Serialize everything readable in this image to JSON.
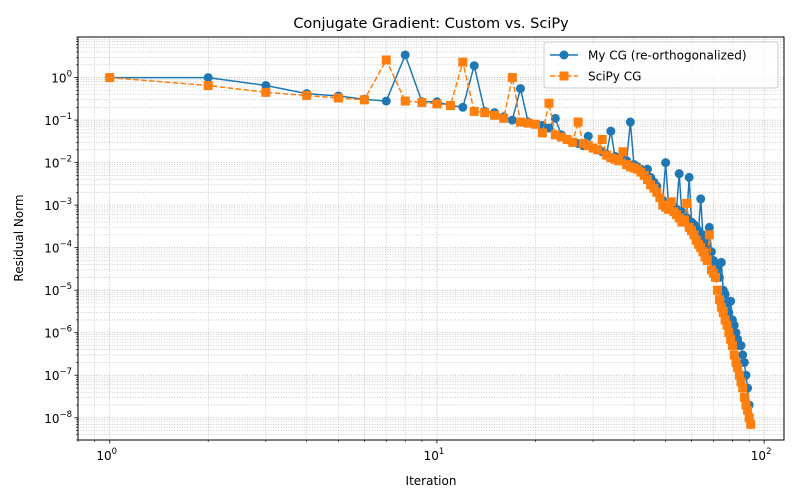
{
  "chart_data": {
    "type": "line",
    "title": "Conjugate Gradient: Custom vs. SciPy",
    "xlabel": "Iteration",
    "ylabel": "Residual Norm",
    "xscale": "log",
    "yscale": "log",
    "xlim": [
      0.8,
      115
    ],
    "ylim": [
      3e-09,
      9
    ],
    "grid": "both major and minor, dotted",
    "legend_position": "top-right",
    "x_ticks": [
      {
        "value": 1,
        "base": "10",
        "exp": "0"
      },
      {
        "value": 10,
        "base": "10",
        "exp": "1"
      },
      {
        "value": 100,
        "base": "10",
        "exp": "2"
      }
    ],
    "y_ticks": [
      {
        "value": 1e-08,
        "base": "10",
        "exp": "−8"
      },
      {
        "value": 1e-07,
        "base": "10",
        "exp": "−7"
      },
      {
        "value": 1e-06,
        "base": "10",
        "exp": "−6"
      },
      {
        "value": 1e-05,
        "base": "10",
        "exp": "−5"
      },
      {
        "value": 0.0001,
        "base": "10",
        "exp": "−4"
      },
      {
        "value": 0.001,
        "base": "10",
        "exp": "−3"
      },
      {
        "value": 0.01,
        "base": "10",
        "exp": "−2"
      },
      {
        "value": 0.1,
        "base": "10",
        "exp": "−1"
      },
      {
        "value": 1,
        "base": "10",
        "exp": "0"
      }
    ],
    "series": [
      {
        "name": "My CG (re-orthogonalized)",
        "color": "#1f77b4",
        "marker": "circle",
        "linestyle": "solid",
        "x": [
          1,
          2,
          3,
          4,
          5,
          6,
          7,
          8,
          9,
          10,
          11,
          12,
          13,
          14,
          15,
          16,
          17,
          18,
          19,
          20,
          21,
          22,
          23,
          24,
          25,
          26,
          27,
          28,
          29,
          30,
          31,
          32,
          33,
          34,
          35,
          36,
          37,
          38,
          39,
          40,
          41,
          42,
          43,
          44,
          45,
          46,
          47,
          48,
          49,
          50,
          51,
          52,
          53,
          54,
          55,
          56,
          57,
          58,
          59,
          60,
          61,
          62,
          63,
          64,
          65,
          66,
          67,
          68,
          69,
          70,
          71,
          72,
          73,
          74,
          75,
          76,
          77,
          78,
          79,
          80,
          81,
          82,
          83,
          84,
          85,
          86,
          87,
          88,
          89,
          90,
          91
        ],
        "y": [
          1.0,
          1.0,
          0.65,
          0.42,
          0.37,
          0.31,
          0.28,
          3.4,
          0.27,
          0.27,
          0.22,
          0.2,
          1.9,
          0.16,
          0.15,
          0.12,
          0.1,
          0.55,
          0.09,
          0.08,
          0.075,
          0.065,
          0.11,
          0.045,
          0.035,
          0.03,
          0.028,
          0.025,
          0.042,
          0.022,
          0.02,
          0.018,
          0.016,
          0.055,
          0.014,
          0.013,
          0.012,
          0.011,
          0.09,
          0.009,
          0.008,
          0.007,
          0.006,
          0.007,
          0.0045,
          0.0035,
          0.0028,
          0.0015,
          0.0013,
          0.01,
          0.0011,
          0.001,
          0.0009,
          0.0008,
          0.0055,
          0.0007,
          0.0006,
          0.0005,
          0.0045,
          0.0004,
          0.00035,
          0.0003,
          0.00025,
          0.0014,
          0.0002,
          0.00015,
          0.00012,
          0.0003,
          8e-05,
          5e-05,
          4e-05,
          3e-05,
          2e-05,
          4.5e-05,
          1e-05,
          8e-06,
          5e-06,
          3e-06,
          5.5e-06,
          2e-06,
          1.5e-06,
          1e-06,
          7e-07,
          5e-07,
          5e-07,
          3e-07,
          2e-07,
          1e-07,
          5e-08,
          2e-08,
          7e-09
        ]
      },
      {
        "name": "SciPy CG",
        "color": "#ff7f0e",
        "marker": "square",
        "linestyle": "dashed",
        "x": [
          1,
          2,
          3,
          4,
          5,
          6,
          7,
          8,
          9,
          10,
          11,
          12,
          13,
          14,
          15,
          16,
          17,
          18,
          19,
          20,
          21,
          22,
          23,
          24,
          25,
          26,
          27,
          28,
          29,
          30,
          31,
          32,
          33,
          34,
          35,
          36,
          37,
          38,
          39,
          40,
          41,
          42,
          43,
          44,
          45,
          46,
          47,
          48,
          49,
          50,
          51,
          52,
          53,
          54,
          55,
          56,
          57,
          58,
          59,
          60,
          61,
          62,
          63,
          64,
          65,
          66,
          67,
          68,
          69,
          70,
          71,
          72,
          73,
          74,
          75,
          76,
          77,
          78,
          79,
          80,
          81,
          82,
          83,
          84,
          85,
          86,
          87,
          88,
          89,
          90,
          91
        ],
        "y": [
          1.0,
          0.65,
          0.45,
          0.38,
          0.33,
          0.3,
          2.6,
          0.28,
          0.26,
          0.24,
          0.22,
          2.3,
          0.16,
          0.15,
          0.13,
          0.11,
          1.0,
          0.09,
          0.085,
          0.08,
          0.05,
          0.25,
          0.045,
          0.04,
          0.035,
          0.03,
          0.09,
          0.028,
          0.025,
          0.022,
          0.02,
          0.035,
          0.015,
          0.013,
          0.012,
          0.011,
          0.018,
          0.009,
          0.008,
          0.0075,
          0.007,
          0.006,
          0.005,
          0.004,
          0.003,
          0.0025,
          0.002,
          0.0015,
          0.001,
          0.0009,
          0.0008,
          0.0012,
          0.0007,
          0.0006,
          0.0005,
          0.0004,
          0.00045,
          0.0011,
          0.0003,
          0.00025,
          0.0002,
          0.00015,
          0.00012,
          0.0001,
          8e-05,
          6e-05,
          5e-05,
          0.0002,
          3e-05,
          2.5e-05,
          2e-05,
          1e-05,
          6e-06,
          4e-06,
          3e-06,
          2e-06,
          1.5e-06,
          1e-06,
          7e-07,
          5e-07,
          3e-07,
          2e-07,
          1.5e-07,
          1e-07,
          7e-08,
          5e-08,
          3e-08,
          2e-08,
          1.5e-08,
          1e-08,
          7e-09
        ]
      }
    ]
  }
}
